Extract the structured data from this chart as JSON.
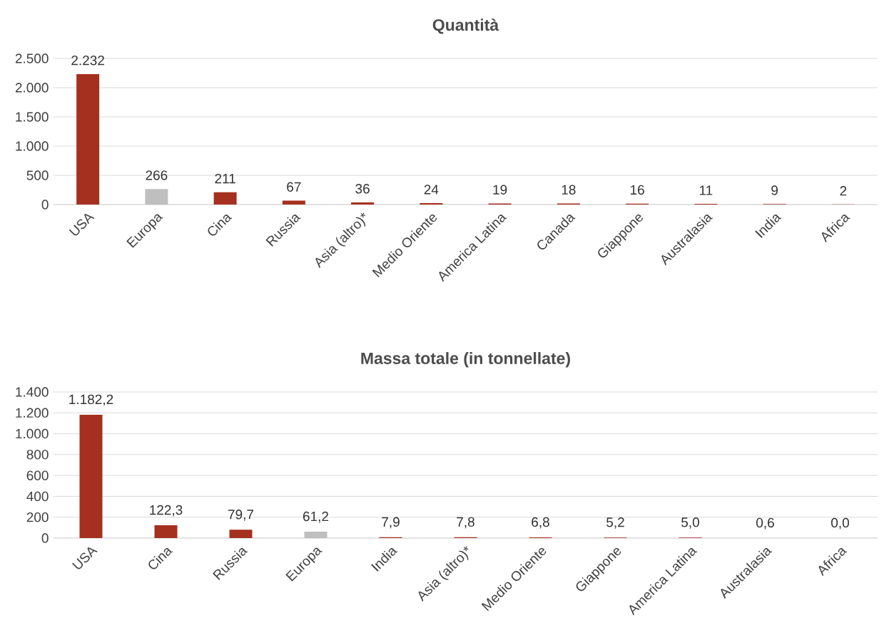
{
  "chart_data": [
    {
      "type": "bar",
      "title": "Quantità",
      "categories": [
        "USA",
        "Europa",
        "Cina",
        "Russia",
        "Asia (altro)*",
        "Medio Oriente",
        "America Latina",
        "Canada",
        "Giappone",
        "Australasia",
        "India",
        "Africa"
      ],
      "values": [
        2232,
        266,
        211,
        67,
        36,
        24,
        19,
        18,
        16,
        11,
        9,
        2
      ],
      "colors": [
        "#a5301f",
        "#bfbfbf",
        "#a5301f",
        "#a5301f",
        "#a5301f",
        "#a5301f",
        "#a5301f",
        "#a5301f",
        "#a5301f",
        "#a5301f",
        "#a5301f",
        "#a5301f"
      ],
      "value_labels": [
        "2.232",
        "266",
        "211",
        "67",
        "36",
        "24",
        "19",
        "18",
        "16",
        "11",
        "9",
        "2"
      ],
      "ylim": [
        0,
        2500
      ],
      "yticks": [
        0,
        {
          "value": 500,
          "label": "500"
        },
        {
          "value": 1000,
          "label": "1.000"
        },
        {
          "value": 1500,
          "label": "1.500"
        },
        {
          "value": 2000,
          "label": "2.000"
        },
        {
          "value": 2500,
          "label": "2.500"
        }
      ],
      "grid": "y"
    },
    {
      "type": "bar",
      "title": "Massa totale (in tonnellate)",
      "categories": [
        "USA",
        "Cina",
        "Russia",
        "Europa",
        "India",
        "Asia (altro)*",
        "Medio Oriente",
        "Giappone",
        "America Latina",
        "Australasia",
        "Africa"
      ],
      "values": [
        1182.2,
        122.3,
        79.7,
        61.2,
        7.9,
        7.8,
        6.8,
        5.2,
        5.0,
        0.6,
        0.0
      ],
      "colors": [
        "#a5301f",
        "#a5301f",
        "#a5301f",
        "#bfbfbf",
        "#a5301f",
        "#a5301f",
        "#a5301f",
        "#a5301f",
        "#a5301f",
        "#a5301f",
        "#a5301f"
      ],
      "value_labels": [
        "1.182,2",
        "122,3",
        "79,7",
        "61,2",
        "7,9",
        "7,8",
        "6,8",
        "5,2",
        "5,0",
        "0,6",
        "0,0"
      ],
      "ylim": [
        0,
        1400
      ],
      "yticks": [
        0,
        200,
        400,
        600,
        800,
        {
          "value": 1000,
          "label": "1.000"
        },
        {
          "value": 1200,
          "label": "1.200"
        },
        {
          "value": 1400,
          "label": "1.400"
        }
      ],
      "grid": "y"
    }
  ]
}
